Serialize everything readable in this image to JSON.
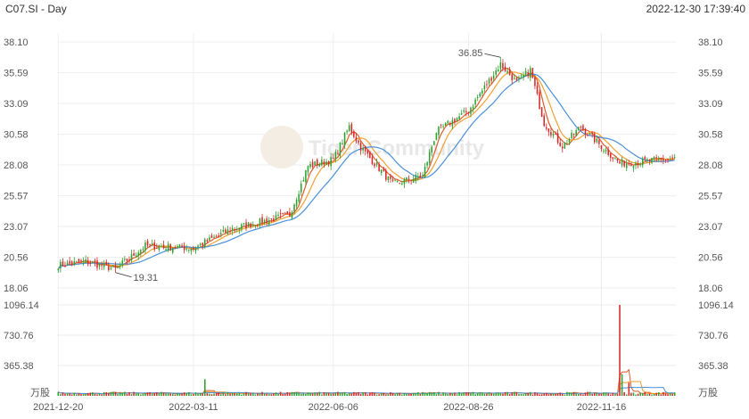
{
  "header": {
    "symbol": "C07.SI - Day",
    "datetime": "2022-12-30 17:39:40"
  },
  "watermark": "Tiger Community",
  "colors": {
    "up": "#2ca02c",
    "down": "#d62728",
    "ma5": "#e05a2b",
    "ma10": "#f0a030",
    "ma20": "#4a90d9",
    "grid": "#eeeeee"
  },
  "chart_data": [
    {
      "type": "candlestick",
      "title": "",
      "price_axis": {
        "ticks": [
          "38.10",
          "35.59",
          "33.09",
          "30.58",
          "28.08",
          "25.57",
          "23.07",
          "20.56",
          "18.06"
        ],
        "ylim": [
          18.06,
          38.1
        ]
      },
      "x_ticks": [
        "2021-12-20",
        "2022-03-11",
        "2022-06-06",
        "2022-08-26",
        "2022-11-16"
      ],
      "annotations": [
        {
          "label": "36.85",
          "date": "2022-09-15",
          "value": 36.85,
          "note": "high"
        },
        {
          "label": "19.31",
          "date": "2022-01-24",
          "value": 19.31,
          "note": "low"
        }
      ],
      "close_anchors": [
        {
          "date": "2021-12-20",
          "close": 19.9
        },
        {
          "date": "2022-01-05",
          "close": 20.2
        },
        {
          "date": "2022-01-24",
          "close": 19.6
        },
        {
          "date": "2022-02-10",
          "close": 21.5
        },
        {
          "date": "2022-03-11",
          "close": 21.3
        },
        {
          "date": "2022-04-05",
          "close": 22.9
        },
        {
          "date": "2022-05-10",
          "close": 24.0
        },
        {
          "date": "2022-05-20",
          "close": 28.0
        },
        {
          "date": "2022-06-06",
          "close": 28.5
        },
        {
          "date": "2022-06-15",
          "close": 31.2
        },
        {
          "date": "2022-06-22",
          "close": 29.5
        },
        {
          "date": "2022-07-12",
          "close": 26.5
        },
        {
          "date": "2022-07-29",
          "close": 27.2
        },
        {
          "date": "2022-08-08",
          "close": 30.8
        },
        {
          "date": "2022-08-26",
          "close": 32.5
        },
        {
          "date": "2022-09-15",
          "close": 36.3
        },
        {
          "date": "2022-09-26",
          "close": 34.8
        },
        {
          "date": "2022-10-04",
          "close": 35.8
        },
        {
          "date": "2022-10-12",
          "close": 31.5
        },
        {
          "date": "2022-10-24",
          "close": 29.6
        },
        {
          "date": "2022-11-03",
          "close": 31.2
        },
        {
          "date": "2022-11-16",
          "close": 29.6
        },
        {
          "date": "2022-11-28",
          "close": 28.2
        },
        {
          "date": "2022-12-30",
          "close": 28.6
        }
      ],
      "moving_averages": [
        "MA5",
        "MA10",
        "MA20"
      ]
    },
    {
      "type": "bar",
      "title": "",
      "unit_label": "万股",
      "volume_axis": {
        "ticks": [
          "1096.14",
          "730.76",
          "365.38"
        ],
        "ylim": [
          0,
          1096.14
        ]
      },
      "typical_volume": 30,
      "spikes": [
        {
          "date": "2022-03-18",
          "value": 200
        },
        {
          "date": "2022-11-28",
          "value": 1096.14
        },
        {
          "date": "2022-11-29",
          "value": 260
        },
        {
          "date": "2022-12-02",
          "value": 160
        }
      ],
      "bar_color_rule": "green when close >= open, red otherwise"
    }
  ]
}
